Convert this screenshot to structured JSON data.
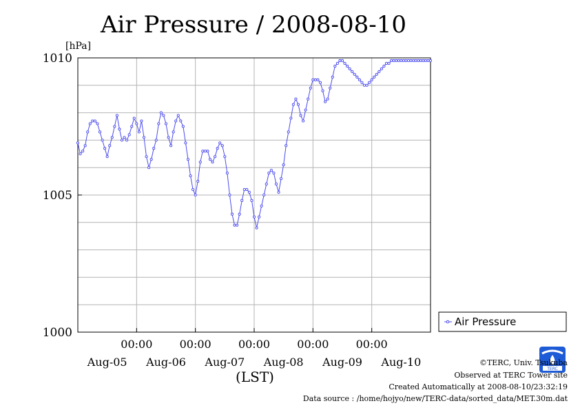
{
  "chart_data": {
    "type": "line",
    "title": "Air Pressure / 2008-08-10",
    "ylabel": "[hPa]",
    "xlabel": "(LST)",
    "ylim": [
      1000,
      1010
    ],
    "yticks": [
      1000,
      1005,
      1010
    ],
    "xlim_hours": [
      0,
      144
    ],
    "x_major_ticks": [
      {
        "hour": 24,
        "time": "00:00",
        "date": "Aug-05"
      },
      {
        "hour": 48,
        "time": "00:00",
        "date": "Aug-06"
      },
      {
        "hour": 72,
        "time": "00:00",
        "date": "Aug-07"
      },
      {
        "hour": 96,
        "time": "00:00",
        "date": "Aug-08"
      },
      {
        "hour": 120,
        "time": "00:00",
        "date": "Aug-09"
      }
    ],
    "x_date_labels": [
      {
        "hour": 12,
        "date": "Aug-05"
      },
      {
        "hour": 36,
        "date": "Aug-06"
      },
      {
        "hour": 60,
        "date": "Aug-07"
      },
      {
        "hour": 84,
        "date": "Aug-08"
      },
      {
        "hour": 108,
        "date": "Aug-09"
      },
      {
        "hour": 132,
        "date": "Aug-10"
      }
    ],
    "grid": true,
    "legend": "right",
    "series_color": "#4a4aee",
    "series": [
      {
        "name": "Air Pressure",
        "x": [
          0,
          1,
          2,
          3,
          4,
          5,
          6,
          7,
          8,
          9,
          10,
          11,
          12,
          13,
          14,
          15,
          16,
          17,
          18,
          19,
          20,
          21,
          22,
          23,
          24,
          25,
          26,
          27,
          28,
          29,
          30,
          31,
          32,
          33,
          34,
          35,
          36,
          37,
          38,
          39,
          40,
          41,
          42,
          43,
          44,
          45,
          46,
          47,
          48,
          49,
          50,
          51,
          52,
          53,
          54,
          55,
          56,
          57,
          58,
          59,
          60,
          61,
          62,
          63,
          64,
          65,
          66,
          67,
          68,
          69,
          70,
          71,
          72,
          73,
          74,
          75,
          76,
          77,
          78,
          79,
          80,
          81,
          82,
          83,
          84,
          85,
          86,
          87,
          88,
          89,
          90,
          91,
          92,
          93,
          94,
          95,
          96,
          97,
          98,
          99,
          100,
          101,
          102,
          103,
          104,
          105,
          106,
          107,
          108,
          109,
          110,
          111,
          112,
          113,
          114,
          115,
          116,
          117,
          118,
          119,
          120,
          121,
          122,
          123,
          124,
          125,
          126,
          127,
          128,
          129,
          130,
          131,
          132,
          133,
          134,
          135,
          136,
          137,
          138,
          139,
          140,
          141,
          142,
          143,
          144
        ],
        "values": [
          1006.9,
          1006.5,
          1006.6,
          1006.8,
          1007.3,
          1007.6,
          1007.7,
          1007.7,
          1007.6,
          1007.3,
          1007.0,
          1006.7,
          1006.4,
          1006.8,
          1007.1,
          1007.5,
          1007.9,
          1007.4,
          1007.0,
          1007.1,
          1007.0,
          1007.2,
          1007.5,
          1007.8,
          1007.6,
          1007.3,
          1007.7,
          1007.1,
          1006.4,
          1006.0,
          1006.3,
          1006.7,
          1007.0,
          1007.6,
          1008.0,
          1007.9,
          1007.6,
          1007.1,
          1006.8,
          1007.3,
          1007.7,
          1007.9,
          1007.7,
          1007.5,
          1006.9,
          1006.3,
          1005.7,
          1005.2,
          1005.0,
          1005.5,
          1006.2,
          1006.6,
          1006.6,
          1006.6,
          1006.3,
          1006.2,
          1006.4,
          1006.7,
          1006.9,
          1006.8,
          1006.4,
          1005.8,
          1005.0,
          1004.3,
          1003.9,
          1003.9,
          1004.3,
          1004.8,
          1005.2,
          1005.2,
          1005.1,
          1004.8,
          1004.2,
          1003.8,
          1004.2,
          1004.6,
          1005.0,
          1005.4,
          1005.8,
          1005.9,
          1005.8,
          1005.4,
          1005.1,
          1005.6,
          1006.1,
          1006.8,
          1007.3,
          1007.8,
          1008.3,
          1008.5,
          1008.3,
          1007.9,
          1007.7,
          1008.1,
          1008.5,
          1008.9,
          1009.2,
          1009.2,
          1009.2,
          1009.1,
          1008.8,
          1008.4,
          1008.5,
          1008.9,
          1009.3,
          1009.7,
          1009.8,
          1009.9,
          1009.9,
          1009.8,
          1009.7,
          1009.6,
          1009.5,
          1009.4,
          1009.3,
          1009.2,
          1009.1,
          1009.0,
          1009.0,
          1009.1,
          1009.2,
          1009.3,
          1009.4,
          1009.5,
          1009.6,
          1009.7,
          1009.8,
          1009.8,
          1009.9,
          1009.9,
          1009.9,
          1009.9,
          1009.9,
          1009.9,
          1009.9,
          1009.9,
          1009.9,
          1009.9,
          1009.9,
          1009.9,
          1009.9,
          1009.9,
          1009.9,
          1009.9,
          1009.9
        ]
      }
    ]
  },
  "footer": {
    "credit": "©TERC, Univ. Tsukuba",
    "observed": "Observed at TERC Tower site",
    "created": "Created Automatically at 2008-08-10/23:32:19",
    "source": "Data source : /home/hojyo/new/TERC-data/sorted_data/MET.30m.dat",
    "logo_text": "TERC"
  }
}
